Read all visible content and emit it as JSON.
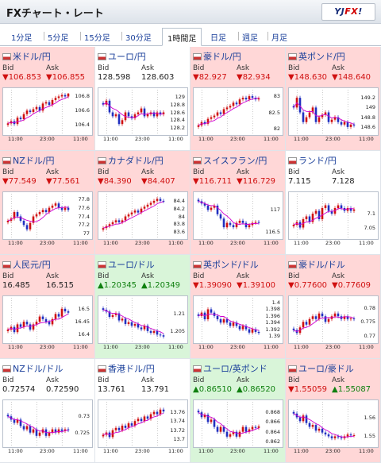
{
  "header": {
    "title": "FXチャート・レート",
    "logo_prefix": "YJ",
    "logo_fx": "FX",
    "logo_suffix": "!"
  },
  "tabs": [
    "1分足",
    "5分足",
    "15分足",
    "30分足",
    "1時間足",
    "日足",
    "週足",
    "月足"
  ],
  "active_tab": "1時間足",
  "labels": {
    "bid": "Bid",
    "ask": "Ask"
  },
  "colors": {
    "down_bg": "#ffd7d7",
    "up_bg": "#d9f5d9",
    "neutral_bg": "#ffffff",
    "down_text": "#d01010",
    "up_text": "#108010",
    "candle_up": "#d01010",
    "candle_down": "#2030c0",
    "ma_line": "#d000d0"
  },
  "pairs": [
    {
      "name": "米ドル/円",
      "status": "down",
      "bid": "▼106.853",
      "ask": "▼106.855",
      "flag": "flag-us-icon",
      "chart_data": {
        "type": "candlestick",
        "ylim": [
          106.3,
          106.85
        ],
        "yticks": [
          "106.8",
          "106.6",
          "106.4"
        ],
        "xticks": [
          "11:00",
          "23:00",
          "11:00"
        ],
        "trend": "up",
        "series_close": [
          106.42,
          106.45,
          106.41,
          106.5,
          106.48,
          106.55,
          106.6,
          106.58,
          106.62,
          106.65,
          106.6,
          106.7,
          106.72,
          106.68,
          106.75,
          106.78,
          106.8,
          106.82,
          106.8,
          106.84
        ]
      }
    },
    {
      "name": "ユーロ/円",
      "status": "neutral",
      "bid": "128.598",
      "ask": "128.603",
      "flag": "flag-eu-icon",
      "chart_data": {
        "type": "candlestick",
        "ylim": [
          128.1,
          129.1
        ],
        "yticks": [
          "129",
          "128.8",
          "128.6",
          "128.4",
          "128.2"
        ],
        "xticks": [
          "11:00",
          "23:00",
          "11:00"
        ],
        "trend": "flat",
        "series_close": [
          128.8,
          128.9,
          128.6,
          128.5,
          128.55,
          128.3,
          128.4,
          128.6,
          128.5,
          128.45,
          128.55,
          128.6,
          128.7,
          128.5,
          128.55,
          128.6,
          128.5,
          128.6,
          128.55,
          128.6
        ]
      }
    },
    {
      "name": "豪ドル/円",
      "status": "down",
      "bid": "▼82.927",
      "ask": "▼82.934",
      "flag": "flag-au-icon",
      "chart_data": {
        "type": "candlestick",
        "ylim": [
          81.9,
          83.1
        ],
        "yticks": [
          "83",
          "82.5",
          "82"
        ],
        "xticks": [
          "11:00",
          "23:00",
          "11:00"
        ],
        "trend": "up",
        "series_close": [
          82.1,
          82.2,
          82.15,
          82.3,
          82.35,
          82.4,
          82.5,
          82.45,
          82.6,
          82.65,
          82.7,
          82.8,
          82.75,
          82.9,
          82.95,
          82.9,
          83.0,
          82.95,
          82.9,
          82.93
        ]
      }
    },
    {
      "name": "英ポンド/円",
      "status": "down",
      "bid": "▼148.630",
      "ask": "▼148.640",
      "flag": "flag-uk-icon",
      "chart_data": {
        "type": "candlestick",
        "ylim": [
          148.5,
          149.3
        ],
        "yticks": [
          "149.2",
          "149",
          "148.8",
          "148.6"
        ],
        "xticks": [
          "11:00",
          "23:00",
          "11:00"
        ],
        "trend": "down",
        "series_close": [
          149.0,
          149.2,
          148.9,
          148.7,
          148.8,
          148.9,
          149.0,
          148.7,
          148.8,
          148.85,
          148.9,
          148.7,
          148.75,
          148.8,
          148.7,
          148.65,
          148.7,
          148.6,
          148.65,
          148.63
        ]
      }
    },
    {
      "name": "NZドル/円",
      "status": "down",
      "bid": "▼77.549",
      "ask": "▼77.561",
      "flag": "flag-nz-icon",
      "chart_data": {
        "type": "candlestick",
        "ylim": [
          76.95,
          77.85
        ],
        "yticks": [
          "77.8",
          "77.6",
          "77.4",
          "77.2",
          "77"
        ],
        "xticks": [
          "11:00",
          "23:00",
          "11:00"
        ],
        "trend": "up",
        "series_close": [
          77.3,
          77.35,
          77.5,
          77.4,
          77.3,
          77.2,
          77.1,
          77.25,
          77.4,
          77.45,
          77.5,
          77.55,
          77.5,
          77.6,
          77.65,
          77.7,
          77.6,
          77.55,
          77.6,
          77.55
        ]
      }
    },
    {
      "name": "カナダドル/円",
      "status": "down",
      "bid": "▼84.390",
      "ask": "▼84.407",
      "flag": "flag-ca-icon",
      "chart_data": {
        "type": "candlestick",
        "ylim": [
          83.5,
          84.5
        ],
        "yticks": [
          "84.4",
          "84.2",
          "84",
          "83.8",
          "83.6"
        ],
        "xticks": [
          "11:00",
          "23:00",
          "11:00"
        ],
        "trend": "up",
        "series_close": [
          83.7,
          83.75,
          83.8,
          83.85,
          83.9,
          83.85,
          83.9,
          84.0,
          84.05,
          84.1,
          84.15,
          84.1,
          84.2,
          84.25,
          84.3,
          84.35,
          84.4,
          84.45,
          84.4,
          84.39
        ]
      }
    },
    {
      "name": "スイスフラン/円",
      "status": "down",
      "bid": "▼116.711",
      "ask": "▼116.729",
      "flag": "flag-ch-icon",
      "chart_data": {
        "type": "candlestick",
        "ylim": [
          116.4,
          117.3
        ],
        "yticks": [
          "117",
          "116.5"
        ],
        "xticks": [
          "11:00",
          "23:00",
          "11:00"
        ],
        "trend": "down",
        "series_close": [
          117.2,
          117.15,
          117.1,
          117.0,
          117.05,
          117.1,
          116.9,
          116.8,
          116.6,
          116.7,
          116.65,
          116.6,
          116.7,
          116.75,
          116.7,
          116.6,
          116.65,
          116.7,
          116.72,
          116.71
        ]
      }
    },
    {
      "name": "ランド/円",
      "status": "neutral",
      "bid": "7.115",
      "ask": "7.128",
      "flag": "flag-za-icon",
      "chart_data": {
        "type": "candlestick",
        "ylim": [
          7.02,
          7.16
        ],
        "yticks": [
          "7.1",
          "7.05"
        ],
        "xticks": [
          "11:00",
          "23:00",
          "11:00"
        ],
        "trend": "up",
        "series_close": [
          7.06,
          7.07,
          7.05,
          7.08,
          7.09,
          7.07,
          7.1,
          7.11,
          7.08,
          7.12,
          7.13,
          7.11,
          7.1,
          7.12,
          7.13,
          7.12,
          7.11,
          7.12,
          7.11,
          7.115
        ]
      }
    },
    {
      "name": "人民元/円",
      "status": "down",
      "bid": "16.485",
      "ask": "16.515",
      "flag": "flag-cn-icon",
      "chart_data": {
        "type": "candlestick",
        "ylim": [
          16.38,
          16.53
        ],
        "yticks": [
          "16.5",
          "16.45",
          "16.4"
        ],
        "xticks": [
          "11:00",
          "23:00",
          "11:00"
        ],
        "trend": "up",
        "series_close": [
          16.42,
          16.43,
          16.41,
          16.44,
          16.43,
          16.45,
          16.44,
          16.42,
          16.44,
          16.45,
          16.47,
          16.46,
          16.45,
          16.44,
          16.46,
          16.48,
          16.47,
          16.5,
          16.49,
          16.485
        ]
      }
    },
    {
      "name": "ユーロ/ドル",
      "status": "up",
      "bid": "▲1.20345",
      "ask": "▲1.20349",
      "flag": "flag-eu-us-icon",
      "chart_data": {
        "type": "candlestick",
        "ylim": [
          1.2025,
          1.2135
        ],
        "yticks": [
          "1.21",
          "1.205"
        ],
        "xticks": [
          "11:00",
          "23:00",
          "11:00"
        ],
        "trend": "down",
        "series_close": [
          1.211,
          1.2105,
          1.209,
          1.2095,
          1.21,
          1.208,
          1.2085,
          1.207,
          1.2075,
          1.2065,
          1.207,
          1.206,
          1.2055,
          1.2065,
          1.205,
          1.2045,
          1.205,
          1.204,
          1.2038,
          1.20345
        ]
      }
    },
    {
      "name": "英ポンド/ドル",
      "status": "down",
      "bid": "▼1.39090",
      "ask": "▼1.39100",
      "flag": "flag-uk-us-icon",
      "chart_data": {
        "type": "candlestick",
        "ylim": [
          1.3888,
          1.4005
        ],
        "yticks": [
          "1.4",
          "1.398",
          "1.396",
          "1.394",
          "1.392",
          "1.39"
        ],
        "xticks": [
          "11:00",
          "23:00",
          "11:00"
        ],
        "trend": "down",
        "series_close": [
          1.396,
          1.397,
          1.395,
          1.398,
          1.397,
          1.396,
          1.395,
          1.394,
          1.395,
          1.394,
          1.393,
          1.394,
          1.393,
          1.392,
          1.393,
          1.392,
          1.391,
          1.392,
          1.3912,
          1.3909
        ]
      }
    },
    {
      "name": "豪ドル/ドル",
      "status": "down",
      "bid": "▼0.77600",
      "ask": "▼0.77609",
      "flag": "flag-au-us-icon",
      "chart_data": {
        "type": "candlestick",
        "ylim": [
          0.7685,
          0.7825
        ],
        "yticks": [
          "0.78",
          "0.775",
          "0.77"
        ],
        "xticks": [
          "11:00",
          "23:00",
          "11:00"
        ],
        "trend": "flat",
        "series_close": [
          0.772,
          0.771,
          0.773,
          0.775,
          0.774,
          0.776,
          0.777,
          0.776,
          0.778,
          0.777,
          0.775,
          0.776,
          0.777,
          0.778,
          0.777,
          0.776,
          0.777,
          0.776,
          0.7762,
          0.776
        ]
      }
    },
    {
      "name": "NZドル/ドル",
      "status": "neutral",
      "bid": "0.72574",
      "ask": "0.72590",
      "flag": "flag-nz-us-icon",
      "chart_data": {
        "type": "candlestick",
        "ylim": [
          0.7215,
          0.7335
        ],
        "yticks": [
          "0.73",
          "0.725"
        ],
        "xticks": [
          "11:00",
          "23:00",
          "11:00"
        ],
        "trend": "down",
        "series_close": [
          0.73,
          0.729,
          0.728,
          0.729,
          0.727,
          0.726,
          0.727,
          0.725,
          0.726,
          0.724,
          0.725,
          0.726,
          0.724,
          0.725,
          0.726,
          0.725,
          0.726,
          0.7255,
          0.726,
          0.72574
        ]
      }
    },
    {
      "name": "香港ドル/円",
      "status": "neutral",
      "bid": "13.761",
      "ask": "13.791",
      "flag": "flag-hk-icon",
      "chart_data": {
        "type": "candlestick",
        "ylim": [
          13.69,
          13.775
        ],
        "yticks": [
          "13.76",
          "13.74",
          "13.72",
          "13.7"
        ],
        "xticks": [
          "11:00",
          "23:00",
          "11:00"
        ],
        "trend": "up",
        "series_close": [
          13.71,
          13.715,
          13.705,
          13.72,
          13.725,
          13.72,
          13.73,
          13.725,
          13.735,
          13.73,
          13.74,
          13.745,
          13.74,
          13.75,
          13.745,
          13.755,
          13.76,
          13.755,
          13.765,
          13.761
        ]
      }
    },
    {
      "name": "ユーロ/英ポンド",
      "status": "up",
      "bid": "▲0.86510",
      "ask": "▲0.86520",
      "flag": "flag-eu-uk-icon",
      "chart_data": {
        "type": "candlestick",
        "ylim": [
          0.8615,
          0.8695
        ],
        "yticks": [
          "0.868",
          "0.866",
          "0.864",
          "0.862"
        ],
        "xticks": [
          "11:00",
          "23:00",
          "11:00"
        ],
        "trend": "down",
        "series_close": [
          0.868,
          0.867,
          0.8675,
          0.866,
          0.8665,
          0.865,
          0.864,
          0.865,
          0.864,
          0.863,
          0.8635,
          0.864,
          0.863,
          0.864,
          0.865,
          0.864,
          0.8645,
          0.865,
          0.8648,
          0.8651
        ]
      }
    },
    {
      "name": "ユーロ/豪ドル",
      "status": "down",
      "bid": "▼1.55059",
      "ask": "▲1.55087",
      "flag": "flag-eu-au-icon",
      "chart_data": {
        "type": "candlestick",
        "ylim": [
          1.546,
          1.5665
        ],
        "yticks": [
          "1.56",
          "1.55"
        ],
        "xticks": [
          "11:00",
          "23:00",
          "11:00"
        ],
        "trend": "down",
        "series_close": [
          1.562,
          1.56,
          1.558,
          1.561,
          1.557,
          1.555,
          1.556,
          1.553,
          1.554,
          1.552,
          1.551,
          1.55,
          1.549,
          1.55,
          1.5495,
          1.549,
          1.55,
          1.551,
          1.5505,
          1.5506
        ]
      }
    }
  ]
}
